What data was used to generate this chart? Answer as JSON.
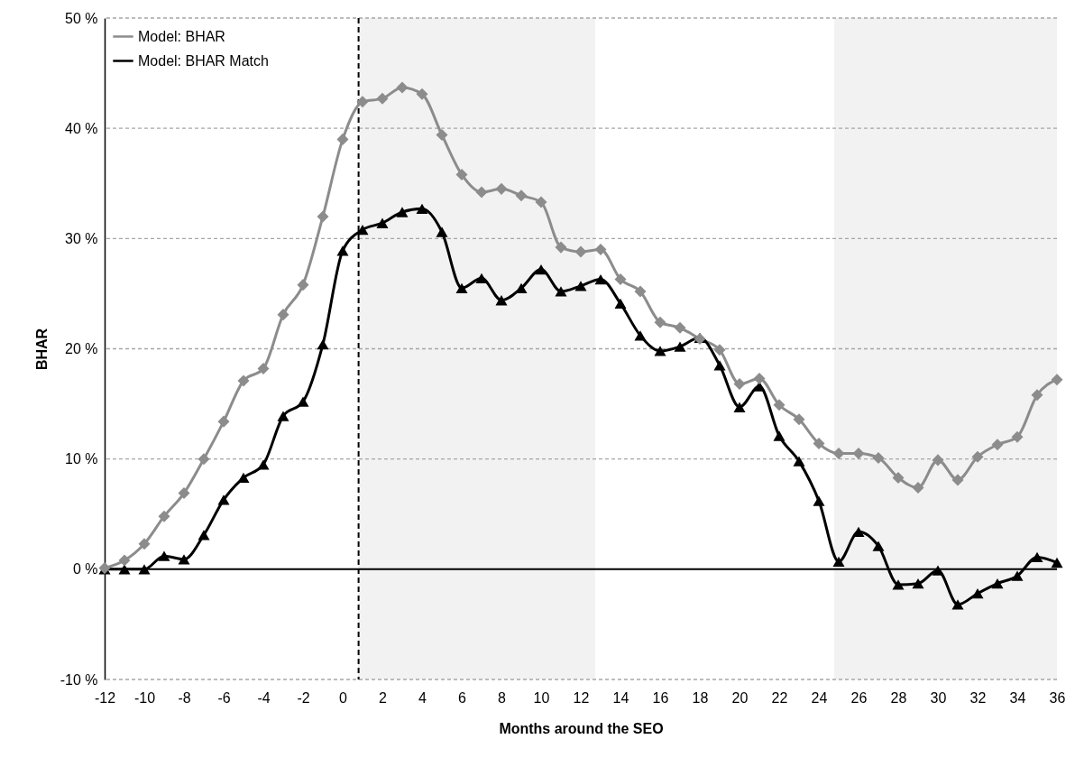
{
  "chart_data": {
    "type": "line",
    "xlabel": "Months around the SEO",
    "ylabel": "BHAR",
    "x": [
      -12,
      -11,
      -10,
      -9,
      -8,
      -7,
      -6,
      -5,
      -4,
      -3,
      -2,
      -1,
      0,
      1,
      2,
      3,
      4,
      5,
      6,
      7,
      8,
      9,
      10,
      11,
      12,
      13,
      14,
      15,
      16,
      17,
      18,
      19,
      20,
      21,
      22,
      23,
      24,
      25,
      26,
      27,
      28,
      29,
      30,
      31,
      32,
      33,
      34,
      35,
      36
    ],
    "series": [
      {
        "name": "Model: BHAR",
        "color": "#8c8c8c",
        "marker": "diamond",
        "values": [
          0.1,
          0.8,
          2.3,
          4.8,
          6.9,
          10.0,
          13.4,
          17.1,
          18.2,
          23.1,
          25.8,
          32.0,
          39.0,
          42.4,
          42.7,
          43.7,
          43.1,
          39.4,
          35.8,
          34.2,
          34.5,
          33.9,
          33.3,
          29.2,
          28.8,
          29.0,
          26.3,
          25.2,
          22.4,
          21.9,
          20.9,
          19.9,
          16.8,
          17.3,
          14.9,
          13.6,
          11.4,
          10.5,
          10.5,
          10.1,
          8.3,
          7.4,
          9.9,
          8.1,
          10.2,
          11.3,
          12.0,
          15.8,
          17.2
        ]
      },
      {
        "name": "Model: BHAR Match",
        "color": "#000000",
        "marker": "triangle",
        "values": [
          0,
          0,
          0,
          1.2,
          0.9,
          3.1,
          6.3,
          8.3,
          9.5,
          13.9,
          15.2,
          20.4,
          28.9,
          30.8,
          31.4,
          32.4,
          32.7,
          30.6,
          25.5,
          26.4,
          24.4,
          25.5,
          27.2,
          25.2,
          25.7,
          26.3,
          24.1,
          21.2,
          19.8,
          20.2,
          21.0,
          18.5,
          14.7,
          16.6,
          12.1,
          9.8,
          6.2,
          0.7,
          3.4,
          2.1,
          -1.4,
          -1.3,
          -0.1,
          -3.2,
          -2.2,
          -1.3,
          -0.6,
          1.1,
          0.6
        ]
      }
    ],
    "xlim": [
      -12,
      36
    ],
    "xticks": [
      -12,
      -10,
      -8,
      -6,
      -4,
      -2,
      0,
      2,
      4,
      6,
      8,
      10,
      12,
      14,
      16,
      18,
      20,
      22,
      24,
      26,
      28,
      30,
      32,
      34,
      36
    ],
    "ylim": [
      -10,
      50
    ],
    "yticks": [
      {
        "value": -10,
        "label": "-10 %"
      },
      {
        "value": 0,
        "label": "0 %"
      },
      {
        "value": 10,
        "label": "10 %"
      },
      {
        "value": 20,
        "label": "20 %"
      },
      {
        "value": 30,
        "label": "30 %"
      },
      {
        "value": 40,
        "label": "40 %"
      },
      {
        "value": 50,
        "label": "50 %"
      }
    ],
    "grid": "y",
    "legend": "top left",
    "line_style": "solid",
    "ref_lines": [
      {
        "axis": "y",
        "value": 0,
        "color": "#000000",
        "line_style": "solid"
      },
      {
        "axis": "x",
        "value": 0.8,
        "color": "#000000",
        "line_style": "dashed"
      }
    ],
    "bands": [
      {
        "axis": "x",
        "from": 0.8,
        "to": 12.7,
        "color": "#f2f2f2"
      },
      {
        "axis": "x",
        "from": 24.8,
        "to": 36,
        "color": "#f2f2f2"
      }
    ]
  }
}
